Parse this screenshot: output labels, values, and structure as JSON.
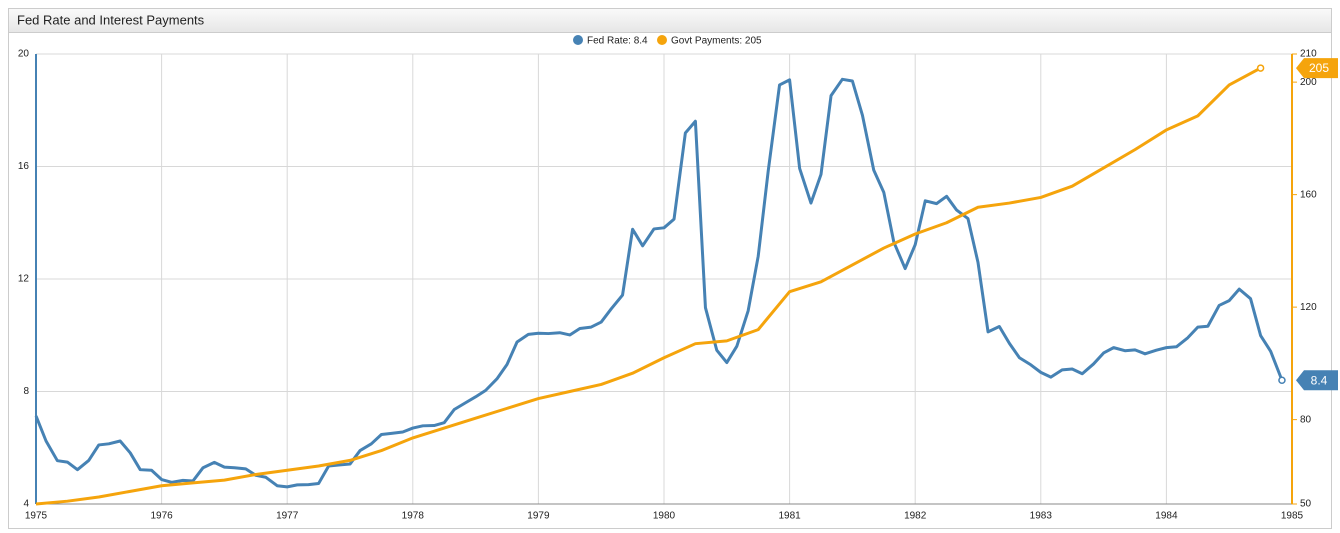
{
  "chart_data": {
    "type": "line",
    "title": "Fed Rate and Interest Payments",
    "xlim": [
      1975,
      1985
    ],
    "xticks": [
      1975,
      1976,
      1977,
      1978,
      1979,
      1980,
      1981,
      1982,
      1983,
      1984,
      1985
    ],
    "ylim": [
      4,
      20
    ],
    "yticks": [
      4,
      8,
      12,
      16,
      20
    ],
    "y2lim": [
      50,
      210
    ],
    "y2ticks": [
      50,
      80,
      120,
      160,
      200,
      210
    ],
    "grid": true,
    "legend": "top",
    "series": [
      {
        "name": "Fed Rate: 8.4",
        "color": "#4682b4",
        "x": [
          1975,
          1975.08,
          1975.17,
          1975.25,
          1975.33,
          1975.42,
          1975.5,
          1975.58,
          1975.67,
          1975.75,
          1975.83,
          1975.92,
          1976,
          1976.08,
          1976.17,
          1976.25,
          1976.33,
          1976.42,
          1976.5,
          1976.58,
          1976.67,
          1976.75,
          1976.83,
          1976.92,
          1977,
          1977.08,
          1977.17,
          1977.25,
          1977.33,
          1977.42,
          1977.5,
          1977.58,
          1977.67,
          1977.75,
          1977.83,
          1977.92,
          1978,
          1978.08,
          1978.17,
          1978.25,
          1978.33,
          1978.42,
          1978.5,
          1978.58,
          1978.67,
          1978.75,
          1978.83,
          1978.92,
          1979,
          1979.08,
          1979.17,
          1979.25,
          1979.33,
          1979.42,
          1979.5,
          1979.58,
          1979.67,
          1979.75,
          1979.83,
          1979.92,
          1980,
          1980.08,
          1980.17,
          1980.25,
          1980.33,
          1980.42,
          1980.5,
          1980.58,
          1980.67,
          1980.75,
          1980.83,
          1980.92,
          1981,
          1981.08,
          1981.17,
          1981.25,
          1981.33,
          1981.42,
          1981.5,
          1981.58,
          1981.67,
          1981.75,
          1981.83,
          1981.92,
          1982,
          1982.08,
          1982.17,
          1982.25,
          1982.33,
          1982.42,
          1982.5,
          1982.58,
          1982.67,
          1982.75,
          1982.83,
          1982.92,
          1983,
          1983.08,
          1983.17,
          1983.25,
          1983.33,
          1983.42,
          1983.5,
          1983.58,
          1983.67,
          1983.75,
          1983.83,
          1983.92,
          1984,
          1984.08,
          1984.17,
          1984.25,
          1984.33,
          1984.42,
          1984.5,
          1984.58,
          1984.67,
          1984.75,
          1984.83,
          1984.92
        ],
        "values": [
          7.13,
          6.24,
          5.54,
          5.49,
          5.22,
          5.55,
          6.1,
          6.14,
          6.24,
          5.82,
          5.22,
          5.2,
          4.87,
          4.77,
          4.84,
          4.82,
          5.29,
          5.48,
          5.31,
          5.29,
          5.25,
          5.02,
          4.95,
          4.65,
          4.61,
          4.68,
          4.69,
          4.73,
          5.35,
          5.39,
          5.42,
          5.9,
          6.14,
          6.47,
          6.51,
          6.56,
          6.7,
          6.78,
          6.79,
          6.89,
          7.36,
          7.6,
          7.81,
          8.04,
          8.45,
          8.96,
          9.76,
          10.03,
          10.07,
          10.06,
          10.09,
          10.01,
          10.24,
          10.29,
          10.47,
          10.94,
          11.43,
          13.77,
          13.18,
          13.78,
          13.82,
          14.13,
          17.19,
          17.61,
          10.98,
          9.47,
          9.03,
          9.61,
          10.87,
          12.81,
          15.85,
          18.9,
          19.08,
          15.93,
          14.7,
          15.72,
          18.52,
          19.1,
          19.04,
          17.82,
          15.87,
          15.08,
          13.31,
          12.37,
          13.22,
          14.78,
          14.68,
          14.94,
          14.45,
          14.15,
          12.59,
          10.12,
          10.31,
          9.71,
          9.2,
          8.95,
          8.68,
          8.51,
          8.77,
          8.8,
          8.63,
          8.98,
          9.37,
          9.56,
          9.45,
          9.48,
          9.34,
          9.47,
          9.56,
          9.59,
          9.91,
          10.29,
          10.32,
          11.06,
          11.23,
          11.64,
          11.3,
          9.99,
          9.43,
          8.4
        ]
      },
      {
        "name": "Govt Payments: 205",
        "color": "#f5a40c",
        "axis": "y2",
        "x": [
          1975,
          1975.25,
          1975.5,
          1975.75,
          1976,
          1976.25,
          1976.5,
          1976.75,
          1977,
          1977.25,
          1977.5,
          1977.75,
          1978,
          1978.25,
          1978.5,
          1978.75,
          1979,
          1979.25,
          1979.5,
          1979.75,
          1980,
          1980.25,
          1980.5,
          1980.75,
          1981,
          1981.25,
          1981.5,
          1981.75,
          1982,
          1982.25,
          1982.5,
          1982.75,
          1983,
          1983.25,
          1983.5,
          1983.75,
          1984,
          1984.25,
          1984.5,
          1984.75
        ],
        "values": [
          50,
          51,
          52.5,
          54.5,
          56.5,
          57.5,
          58.5,
          60.5,
          62,
          63.5,
          65.5,
          69,
          73.5,
          77,
          80.5,
          84,
          87.5,
          90,
          92.5,
          96.5,
          102,
          107,
          108,
          112,
          125.5,
          129,
          135,
          141,
          146,
          150,
          155.5,
          157,
          159,
          163,
          169.5,
          176,
          183,
          188,
          199,
          205
        ]
      }
    ]
  }
}
